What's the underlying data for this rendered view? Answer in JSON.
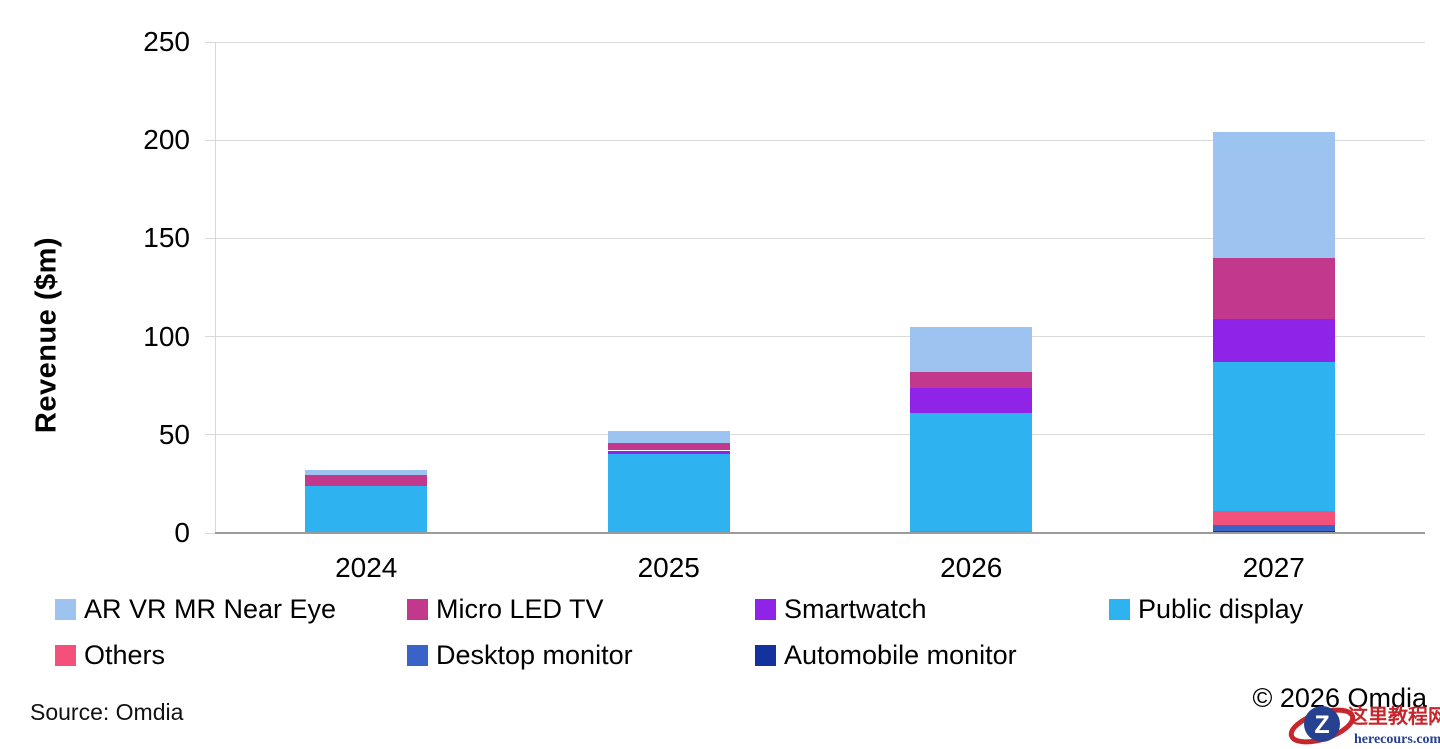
{
  "chart_data": {
    "type": "bar",
    "stacked": true,
    "title": "",
    "xlabel": "",
    "ylabel": "Revenue ($m)",
    "ylim": [
      0,
      250
    ],
    "ytick_step": 50,
    "yticks": [
      "0",
      "50",
      "100",
      "150",
      "200",
      "250"
    ],
    "grid": true,
    "legend_position": "bottom",
    "categories": [
      "2024",
      "2025",
      "2026",
      "2027"
    ],
    "series": [
      {
        "name": "Automobile monitor",
        "color": "#12329E",
        "values": [
          0,
          0,
          0,
          1
        ]
      },
      {
        "name": "Desktop monitor",
        "color": "#3A63C8",
        "values": [
          0,
          0,
          0,
          3
        ]
      },
      {
        "name": "Others",
        "color": "#F4507C",
        "values": [
          0,
          0,
          1,
          7
        ]
      },
      {
        "name": "Public display",
        "color": "#2EB3F0",
        "values": [
          24,
          40,
          60,
          76
        ]
      },
      {
        "name": "Smartwatch",
        "color": "#8F23E8",
        "values": [
          0,
          2,
          13,
          22
        ]
      },
      {
        "name": "Micro LED TV",
        "color": "#C2388C",
        "values": [
          5.5,
          4,
          8,
          31
        ]
      },
      {
        "name": "AR VR MR Near Eye",
        "color": "#9DC3F0",
        "values": [
          2.5,
          6,
          23,
          64
        ]
      }
    ],
    "totals": [
      32,
      52,
      105,
      204
    ],
    "stack_order": "series listed bottom-to-top"
  },
  "colors": {
    "grid": "#D9D9D9",
    "x_axis_line": "#9B9B9B",
    "y_axis_line": "#D9D9D9",
    "text": "#000000",
    "background": "#FFFFFF"
  },
  "footer": {
    "source": "Source: Omdia",
    "copyright": "© 2026 Omdia"
  },
  "watermark": {
    "logo_letter": "Z",
    "site_name": "这里教程网",
    "site_url": "herecours.com",
    "red": "#C5272D",
    "blue": "#25418F"
  }
}
